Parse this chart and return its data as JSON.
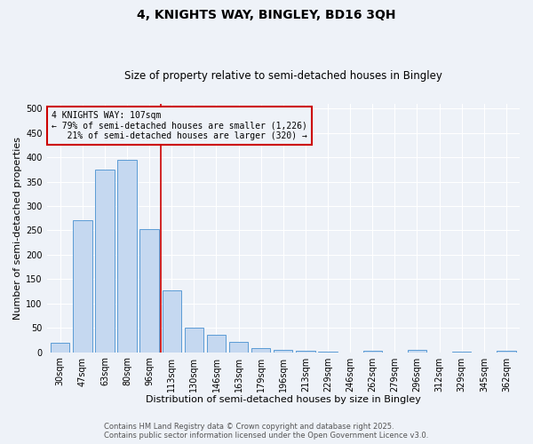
{
  "title1": "4, KNIGHTS WAY, BINGLEY, BD16 3QH",
  "title2": "Size of property relative to semi-detached houses in Bingley",
  "xlabel": "Distribution of semi-detached houses by size in Bingley",
  "ylabel": "Number of semi-detached properties",
  "categories": [
    "30sqm",
    "47sqm",
    "63sqm",
    "80sqm",
    "96sqm",
    "113sqm",
    "130sqm",
    "146sqm",
    "163sqm",
    "179sqm",
    "196sqm",
    "213sqm",
    "229sqm",
    "246sqm",
    "262sqm",
    "279sqm",
    "296sqm",
    "312sqm",
    "329sqm",
    "345sqm",
    "362sqm"
  ],
  "values": [
    20,
    270,
    375,
    395,
    253,
    126,
    50,
    35,
    21,
    9,
    4,
    2,
    1,
    0,
    3,
    0,
    5,
    0,
    1,
    0,
    2
  ],
  "bar_color": "#c5d8f0",
  "bar_edge_color": "#5b9bd5",
  "vline_index": 4.5,
  "vline_color": "#cc0000",
  "annotation_text": "4 KNIGHTS WAY: 107sqm\n← 79% of semi-detached houses are smaller (1,226)\n   21% of semi-detached houses are larger (320) →",
  "annotation_box_color": "#cc0000",
  "ylim": [
    0,
    510
  ],
  "yticks": [
    0,
    50,
    100,
    150,
    200,
    250,
    300,
    350,
    400,
    450,
    500
  ],
  "footer1": "Contains HM Land Registry data © Crown copyright and database right 2025.",
  "footer2": "Contains public sector information licensed under the Open Government Licence v3.0.",
  "bg_color": "#eef2f8",
  "grid_color": "#ffffff",
  "title1_fontsize": 10,
  "title2_fontsize": 8.5,
  "xlabel_fontsize": 8,
  "ylabel_fontsize": 8,
  "tick_fontsize": 7,
  "footer_fontsize": 6,
  "annot_fontsize": 7
}
